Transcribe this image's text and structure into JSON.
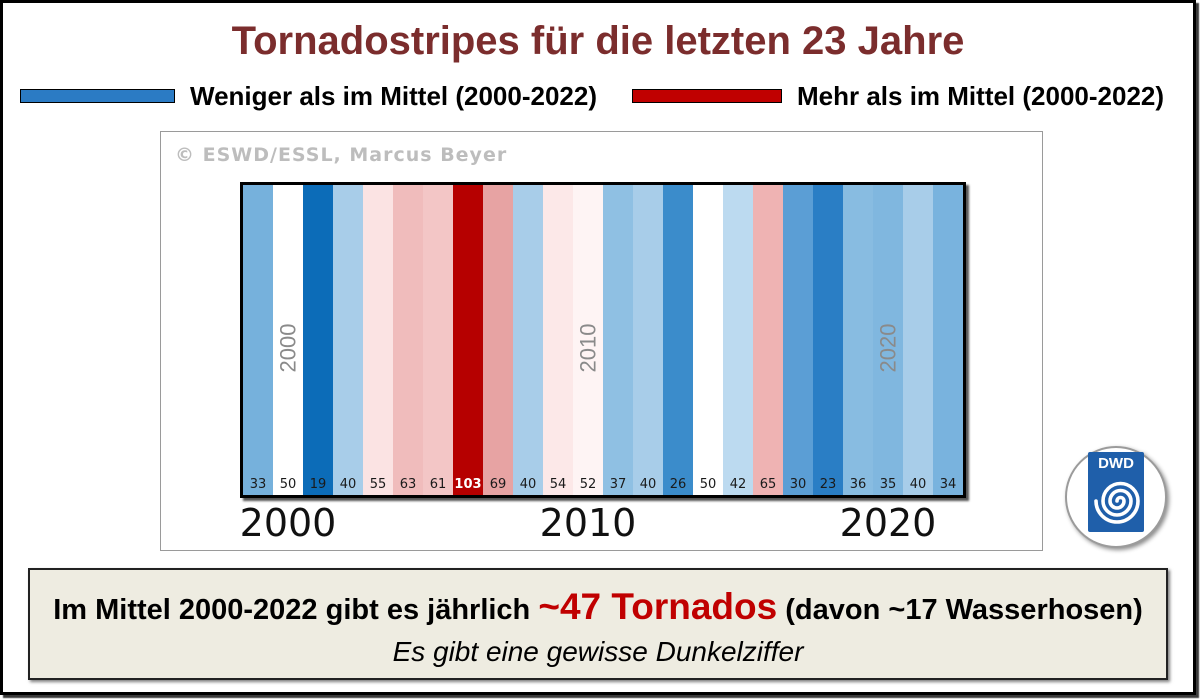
{
  "title": "Tornadostripes für die letzten 23 Jahre",
  "colors": {
    "title": "#7b2d2d",
    "highlight": "#c00000",
    "summary_background": "#eeece1",
    "logo_blue": "#1f5faa"
  },
  "legend": [
    {
      "label": "Weniger als im Mittel (2000-2022)",
      "color": "#2b7bc4"
    },
    {
      "label": "Mehr als im Mittel (2000-2022)",
      "color": "#c00000"
    }
  ],
  "chart": {
    "copyright": "© ESWD/ESSL, Marcus Beyer"
  },
  "chart_data": {
    "type": "heatmap",
    "values": [
      33,
      50,
      19,
      40,
      55,
      63,
      61,
      103,
      69,
      40,
      54,
      52,
      37,
      40,
      26,
      50,
      42,
      65,
      30,
      23,
      36,
      35,
      40,
      34
    ],
    "colors": [
      "#76b1dc",
      "#ffffff",
      "#0c6cb8",
      "#a8cde9",
      "#fbe3e3",
      "#f0bcbc",
      "#f3c6c6",
      "#b60000",
      "#e7a3a3",
      "#a8cde9",
      "#fce8e8",
      "#fef4f4",
      "#8fc0e3",
      "#a8cde9",
      "#3b8ccb",
      "#ffffff",
      "#bcdaf0",
      "#efb3b3",
      "#5b9ed5",
      "#2a7ec5",
      "#88bce1",
      "#80b7df",
      "#a8cde9",
      "#79b3de"
    ],
    "inner_year_labels": [
      {
        "label": "2000",
        "stripe_index": 1
      },
      {
        "label": "2010",
        "stripe_index": 11
      },
      {
        "label": "2020",
        "stripe_index": 21
      }
    ],
    "x_tick_labels": [
      {
        "label": "2000",
        "stripe_index": 1
      },
      {
        "label": "2010",
        "stripe_index": 11
      },
      {
        "label": "2020",
        "stripe_index": 21
      }
    ],
    "legend_placement": "top",
    "grid": false
  },
  "summary": {
    "text_before": "Im Mittel 2000-2022 gibt es jährlich",
    "highlight": "~47 Tornados",
    "text_after": "(davon ~17 Wasserhosen)",
    "note": "Es gibt eine gewisse Dunkelziffer"
  },
  "logo": {
    "text": "DWD"
  }
}
